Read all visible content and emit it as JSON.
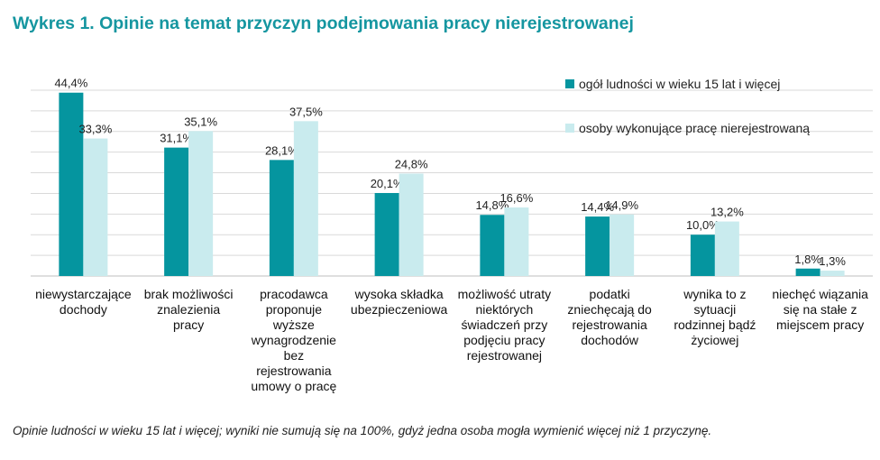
{
  "chart_data": {
    "type": "bar",
    "title": "Wykres 1. Opinie na temat przyczyn podejmowania pracy nierejestrowanej",
    "note": "Opinie ludności w wieku 15 lat i więcej; wyniki nie sumują się na 100%, gdyż jedna osoba mogła wymienić więcej niż 1 przyczynę.",
    "categories": [
      [
        "niewystarczające",
        "dochody"
      ],
      [
        "brak możliwości",
        "znalezienia",
        "pracy"
      ],
      [
        "pracodawca",
        "proponuje",
        "wyższe",
        "wynagrodzenie",
        "bez",
        "rejestrowania",
        "umowy o pracę"
      ],
      [
        "wysoka składka",
        "ubezpieczeniowa"
      ],
      [
        "możliwość utraty",
        "niektórych",
        "świadczeń przy",
        "podjęciu pracy",
        "rejestrowanej"
      ],
      [
        "podatki",
        "zniechęcają do",
        "rejestrowania",
        "dochodów"
      ],
      [
        "wynika to z",
        "sytuacji",
        "rodzinnej bądź",
        "życiowej"
      ],
      [
        "niechęć wiązania",
        "się na stałe  z",
        "miejscem pracy"
      ]
    ],
    "series": [
      {
        "name": "ogół ludności w wieku 15 lat i więcej",
        "color": "#05959f",
        "values": [
          44.4,
          31.1,
          28.1,
          20.1,
          14.8,
          14.4,
          10.0,
          1.8
        ],
        "labels": [
          "44,4%",
          "31,1%",
          "28,1%",
          "20,1%",
          "14,8%",
          "14,4%",
          "10,0%",
          "1,8%"
        ]
      },
      {
        "name": "osoby wykonujące pracę nierejestrowaną",
        "color": "#c9ebee",
        "values": [
          33.3,
          35.1,
          37.5,
          24.8,
          16.6,
          14.9,
          13.2,
          1.3
        ],
        "labels": [
          "33,3%",
          "35,1%",
          "37,5%",
          "24,8%",
          "16,6%",
          "14,9%",
          "13,2%",
          "1,3%"
        ]
      }
    ],
    "ylim": [
      0,
      45
    ],
    "grid": true,
    "legend": "top-right"
  }
}
